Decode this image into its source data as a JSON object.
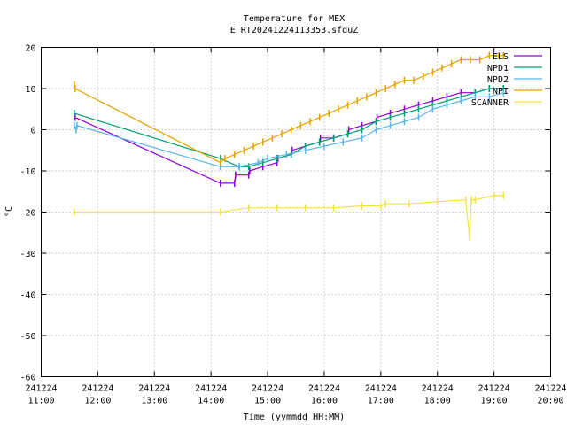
{
  "chart_data": {
    "type": "line",
    "title": "Temperature for MEX",
    "subtitle": "E_RT20241224113353.sfduZ",
    "xlabel": "Time (yymmdd HH:MM)",
    "ylabel": "°C",
    "ylim": [
      -60,
      20
    ],
    "xlim": [
      "241224 11:00",
      "241224 20:00"
    ],
    "x_ticks": [
      {
        "date": "241224",
        "time": "11:00"
      },
      {
        "date": "241224",
        "time": "12:00"
      },
      {
        "date": "241224",
        "time": "13:00"
      },
      {
        "date": "241224",
        "time": "14:00"
      },
      {
        "date": "241224",
        "time": "15:00"
      },
      {
        "date": "241224",
        "time": "16:00"
      },
      {
        "date": "241224",
        "time": "17:00"
      },
      {
        "date": "241224",
        "time": "18:00"
      },
      {
        "date": "241224",
        "time": "19:00"
      },
      {
        "date": "241224",
        "time": "20:00"
      }
    ],
    "y_ticks": [
      "20",
      "10",
      "0",
      "-10",
      "-20",
      "-30",
      "-40",
      "-50",
      "-60"
    ],
    "grid": true,
    "legend_position": "top-right",
    "series": [
      {
        "name": "ELS",
        "color": "#9400d3",
        "x": [
          "11:35",
          "11:36",
          "14:10",
          "14:25",
          "14:26",
          "14:40",
          "14:41",
          "14:55",
          "15:10",
          "15:11",
          "15:25",
          "15:26",
          "15:40",
          "15:55",
          "15:56",
          "16:10",
          "16:25",
          "16:26",
          "16:40",
          "16:55",
          "16:56",
          "17:10",
          "17:25",
          "17:40",
          "17:55",
          "18:10",
          "18:25",
          "18:40",
          "18:55",
          "19:10"
        ],
        "y": [
          4,
          3,
          -13,
          -13,
          -11,
          -11,
          -10,
          -9,
          -8,
          -7,
          -6,
          -5,
          -4,
          -3,
          -2,
          -2,
          -1,
          0,
          1,
          2,
          3,
          4,
          5,
          6,
          7,
          8,
          9,
          9,
          10,
          10
        ]
      },
      {
        "name": "NPD1",
        "color": "#009e73",
        "x": [
          "11:35",
          "14:10",
          "14:30",
          "14:40",
          "14:55",
          "15:10",
          "15:25",
          "15:40",
          "15:55",
          "16:10",
          "16:25",
          "16:40",
          "16:55",
          "17:10",
          "17:25",
          "17:40",
          "17:55",
          "18:10",
          "18:25",
          "18:40",
          "18:55",
          "19:10"
        ],
        "y": [
          4,
          -7,
          -9,
          -9,
          -8,
          -7,
          -6,
          -4,
          -3,
          -2,
          -1,
          0,
          2,
          3,
          4,
          5,
          6,
          7,
          8,
          9,
          10,
          10
        ]
      },
      {
        "name": "NPD2",
        "color": "#56b4e9",
        "x": [
          "11:35",
          "11:37",
          "11:38",
          "14:10",
          "14:30",
          "14:50",
          "15:00",
          "15:20",
          "15:40",
          "16:00",
          "16:20",
          "16:40",
          "16:55",
          "17:10",
          "17:25",
          "17:40",
          "17:55",
          "18:10",
          "18:25",
          "18:40",
          "18:55",
          "19:10"
        ],
        "y": [
          1,
          0,
          1,
          -9,
          -9,
          -8,
          -7,
          -6,
          -5,
          -4,
          -3,
          -2,
          0,
          1,
          2,
          3,
          5,
          6,
          7,
          8,
          8,
          9
        ]
      },
      {
        "name": "NPI",
        "color": "#e69f00",
        "x": [
          "11:35",
          "11:36",
          "14:10",
          "14:15",
          "14:25",
          "14:35",
          "14:45",
          "14:55",
          "15:05",
          "15:15",
          "15:25",
          "15:35",
          "15:45",
          "15:55",
          "16:05",
          "16:15",
          "16:25",
          "16:35",
          "16:45",
          "16:55",
          "17:05",
          "17:15",
          "17:25",
          "17:35",
          "17:45",
          "17:55",
          "18:05",
          "18:15",
          "18:25",
          "18:35",
          "18:45",
          "18:55",
          "19:05",
          "19:10"
        ],
        "y": [
          11,
          10,
          -8,
          -7,
          -6,
          -5,
          -4,
          -3,
          -2,
          -1,
          0,
          1,
          2,
          3,
          4,
          5,
          6,
          7,
          8,
          9,
          10,
          11,
          12,
          12,
          13,
          14,
          15,
          16,
          17,
          17,
          17,
          18,
          18,
          18
        ]
      },
      {
        "name": "SCANNER",
        "color": "#f0e442",
        "x": [
          "11:35",
          "14:10",
          "14:40",
          "15:10",
          "15:40",
          "16:10",
          "16:40",
          "17:00",
          "17:05",
          "17:30",
          "18:00",
          "18:30",
          "18:34",
          "18:36",
          "18:40",
          "19:00",
          "19:10"
        ],
        "y": [
          -20,
          -20,
          -19,
          -19,
          -19,
          -19,
          -18.5,
          -18.5,
          -18,
          -18,
          -17.5,
          -17,
          -26,
          -17,
          -17,
          -16,
          -16
        ]
      }
    ]
  }
}
